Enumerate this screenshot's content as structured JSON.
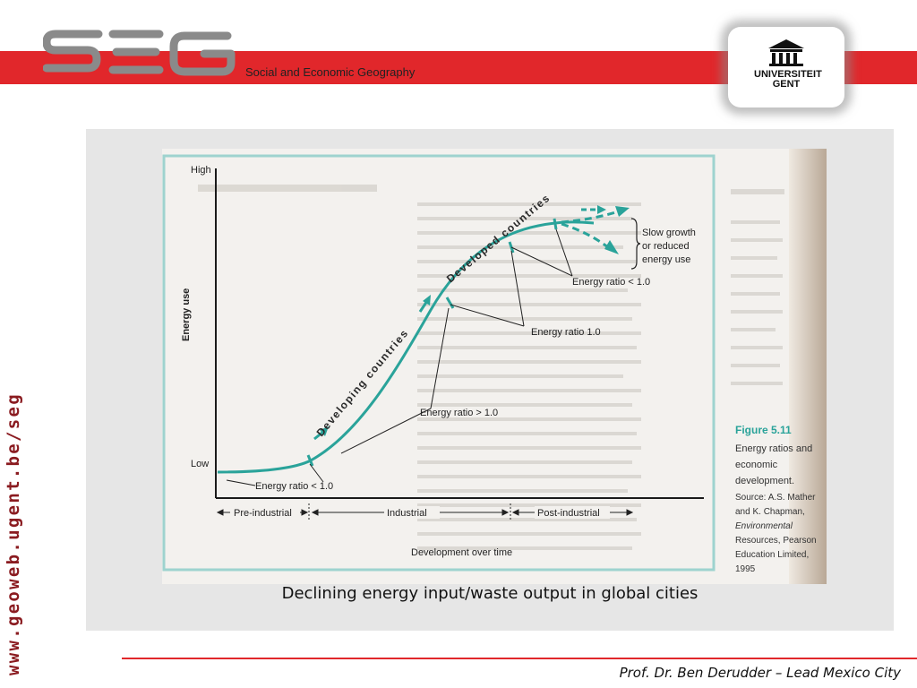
{
  "header": {
    "logo_text": "SEG",
    "tagline": "Social and Economic Geography",
    "university": {
      "line1": "UNIVERSITEIT",
      "line2": "GENT"
    }
  },
  "sidebar": {
    "url": "www.geoweb.ugent.be/seg"
  },
  "figure": {
    "y_axis_label": "Energy use",
    "y_high": "High",
    "y_low": "Low",
    "x_axis_label": "Development over time",
    "phases": [
      "Pre-industrial",
      "Industrial",
      "Post-industrial"
    ],
    "curve_labels": {
      "developing": "Developing countries",
      "developed": "Developed countries"
    },
    "annotations": {
      "ratio_lt_1_low": "Energy ratio < 1.0",
      "ratio_gt_1": "Energy ratio > 1.0",
      "ratio_eq_1": "Energy ratio    1.0",
      "ratio_lt_1_high": "Energy ratio < 1.0",
      "slow_growth": [
        "Slow growth",
        "or reduced",
        "energy use"
      ]
    },
    "source_box": {
      "title": "Figure 5.11",
      "desc": [
        "Energy ratios and",
        "economic",
        "development."
      ],
      "source": [
        "Source: A.S. Mather",
        "and K. Chapman,",
        "Environmental",
        "Resources, Pearson",
        "Education Limited,",
        "1995"
      ]
    }
  },
  "caption": "Declining energy input/waste output in global cities",
  "footer": "Prof. Dr. Ben Derudder – Lead Mexico City",
  "colors": {
    "brand_red": "#e1272b",
    "curve_teal": "#2aa39a",
    "logo_grey": "#8a8a8a"
  }
}
